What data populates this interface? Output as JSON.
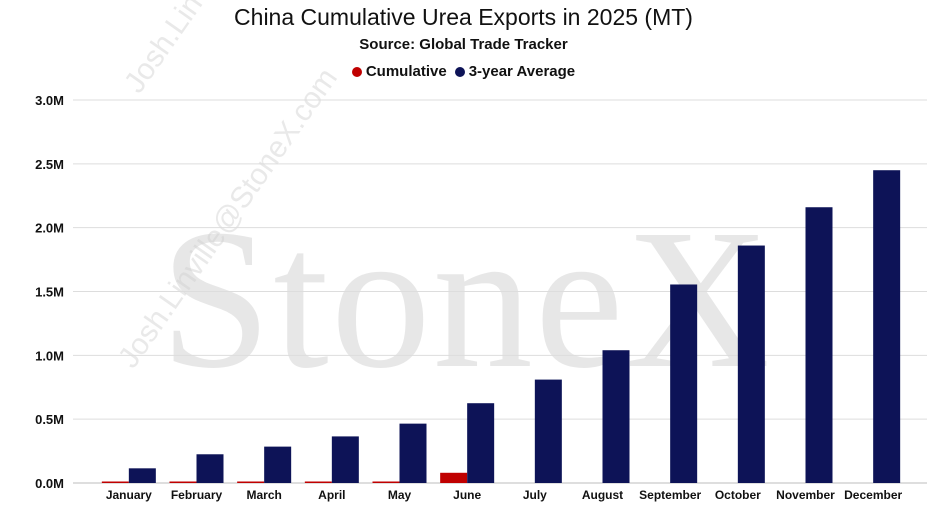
{
  "chart_data": {
    "type": "bar",
    "title": "China Cumulative Urea Exports in 2025 (MT)",
    "subtitle": "Source: Global Trade Tracker",
    "categories": [
      "January",
      "February",
      "March",
      "April",
      "May",
      "June",
      "July",
      "August",
      "September",
      "October",
      "November",
      "December"
    ],
    "series": [
      {
        "name": "Cumulative",
        "color": "#c00000",
        "values": [
          0.005,
          0.006,
          0.006,
          0.006,
          0.01,
          0.08,
          null,
          null,
          null,
          null,
          null,
          null
        ]
      },
      {
        "name": "3-year Average",
        "color": "#0d1357",
        "values": [
          0.115,
          0.225,
          0.285,
          0.365,
          0.465,
          0.625,
          0.81,
          1.04,
          1.555,
          1.86,
          2.16,
          2.45
        ]
      }
    ],
    "yticks": [
      "0.0M",
      "0.5M",
      "1.0M",
      "1.5M",
      "2.0M",
      "2.5M",
      "3.0M"
    ],
    "ylim": [
      0,
      3.0
    ],
    "grid": true,
    "legend_position": "top"
  },
  "watermark": {
    "brand": "StoneX",
    "email": "Josh.Linville@StoneX.com"
  }
}
